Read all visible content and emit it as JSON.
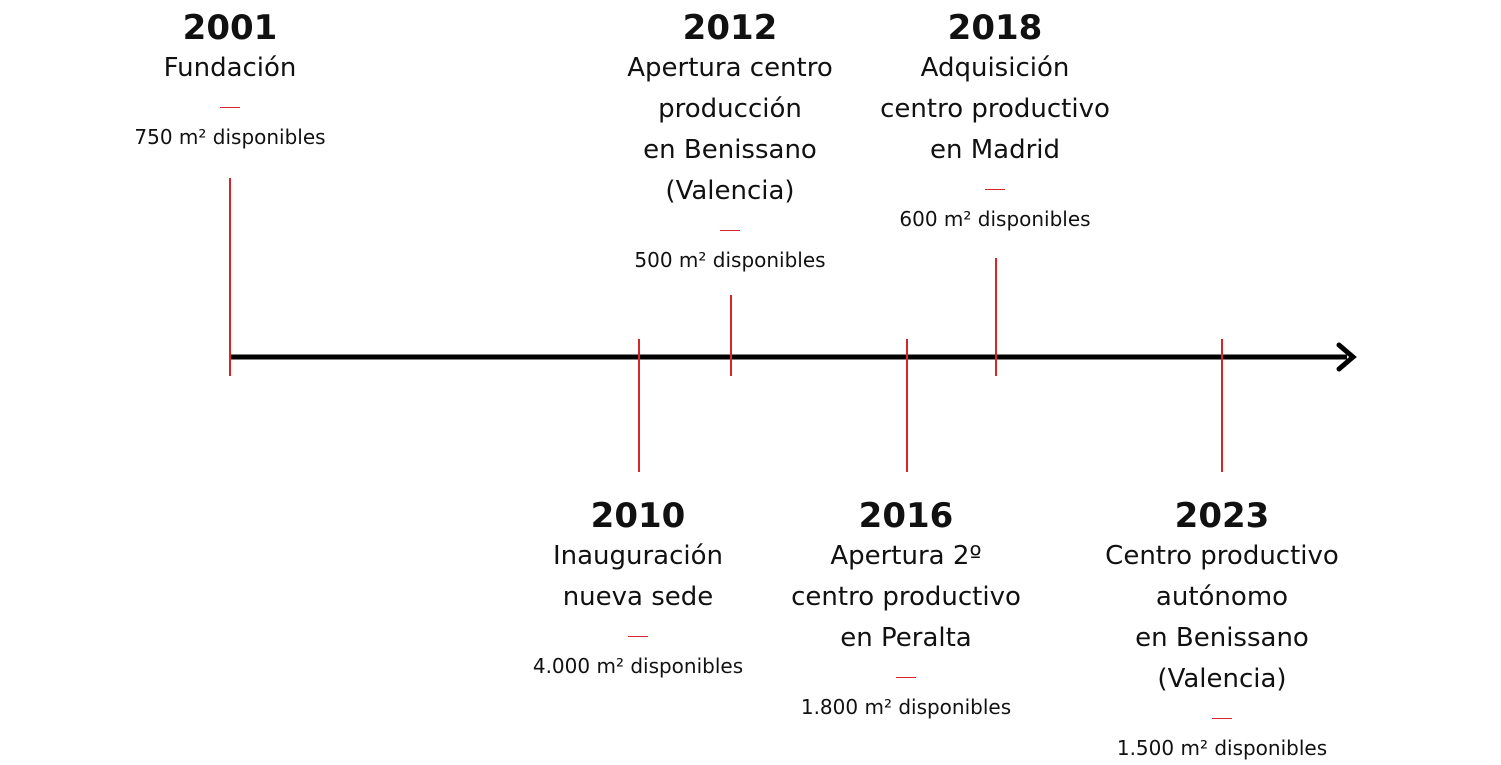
{
  "colors": {
    "axis": "#000000",
    "tick": "#d8242b",
    "text": "#111111"
  },
  "events": [
    {
      "year": "2001",
      "description": "Fundación",
      "area": "750 m² disponibles",
      "position": "above"
    },
    {
      "year": "2010",
      "description": "Inauguración\nnueva sede",
      "area": "4.000 m² disponibles",
      "position": "below"
    },
    {
      "year": "2012",
      "description": "Apertura centro\nproducción\nen Benissano\n(Valencia)",
      "area": "500 m² disponibles",
      "position": "above"
    },
    {
      "year": "2016",
      "description": "Apertura 2º\ncentro productivo\nen Peralta",
      "area": "1.800 m² disponibles",
      "position": "below"
    },
    {
      "year": "2018",
      "description": "Adquisición\ncentro productivo\nen Madrid",
      "area": "600 m² disponibles",
      "position": "above"
    },
    {
      "year": "2023",
      "description": "Centro productivo\nautónomo\nen Benissano\n(Valencia)",
      "area": "1.500 m² disponibles",
      "position": "below"
    }
  ]
}
